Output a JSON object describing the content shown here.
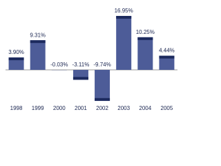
{
  "chart_data": {
    "type": "bar",
    "categories": [
      "1998",
      "1999",
      "2000",
      "2001",
      "2002",
      "2003",
      "2004",
      "2005"
    ],
    "values": [
      3.9,
      9.31,
      -0.03,
      -3.11,
      -9.74,
      16.95,
      10.25,
      4.44
    ],
    "value_labels": [
      "3.90%",
      "9.31%",
      "-0.03%",
      "-3.11%",
      "-9.74%",
      "16.95%",
      "10.25%",
      "4.44%"
    ],
    "color": "#4d5c98",
    "cap_color": "#1c2a5e"
  }
}
